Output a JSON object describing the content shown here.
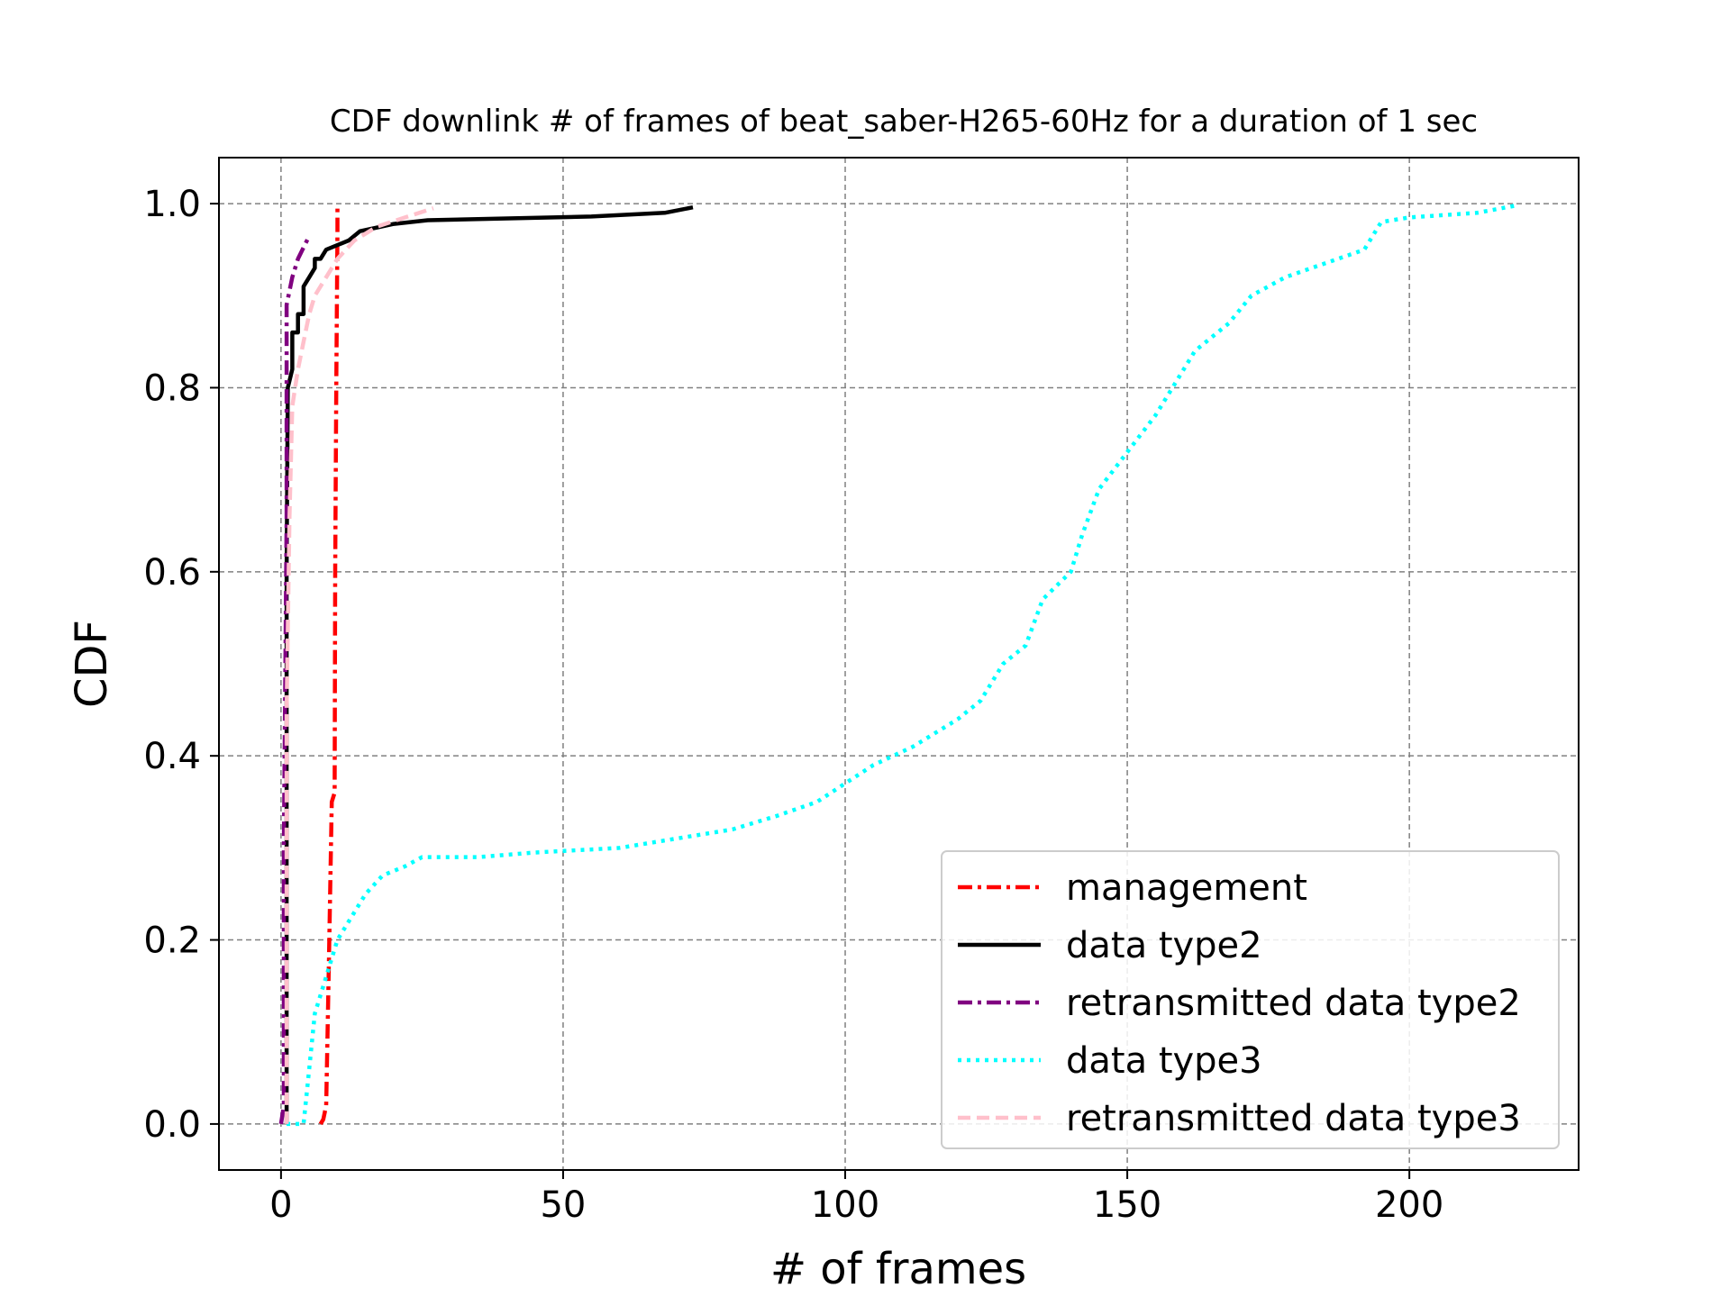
{
  "chart_data": {
    "type": "line",
    "title": "CDF downlink # of frames of beat_saber-H265-60Hz for a duration of 1 sec",
    "xlabel": "# of frames",
    "ylabel": "CDF",
    "xlim": [
      -11,
      230
    ],
    "ylim": [
      -0.05,
      1.05
    ],
    "xticks": [
      0,
      50,
      100,
      150,
      200
    ],
    "yticks": [
      0.0,
      0.2,
      0.4,
      0.6,
      0.8,
      1.0
    ],
    "xtick_labels": [
      "0",
      "50",
      "100",
      "150",
      "200"
    ],
    "ytick_labels": [
      "0.0",
      "0.2",
      "0.4",
      "0.6",
      "0.8",
      "1.0"
    ],
    "grid": true,
    "legend_position": "lower-right",
    "series": [
      {
        "name": "management",
        "color": "#ff0000",
        "style": "dashdot",
        "points": [
          [
            7,
            0.0
          ],
          [
            7.5,
            0.005
          ],
          [
            8,
            0.02
          ],
          [
            8.5,
            0.18
          ],
          [
            9,
            0.35
          ],
          [
            9.5,
            0.36
          ],
          [
            9.6,
            0.6
          ],
          [
            9.8,
            0.8
          ],
          [
            10,
            0.97
          ],
          [
            10,
            1.0
          ]
        ]
      },
      {
        "name": "data type2",
        "color": "#000000",
        "style": "solid",
        "points": [
          [
            1,
            0.0
          ],
          [
            1,
            0.2
          ],
          [
            1,
            0.4
          ],
          [
            1,
            0.6
          ],
          [
            1.2,
            0.8
          ],
          [
            2,
            0.82
          ],
          [
            2,
            0.86
          ],
          [
            3,
            0.86
          ],
          [
            3,
            0.88
          ],
          [
            4,
            0.88
          ],
          [
            4,
            0.91
          ],
          [
            5,
            0.92
          ],
          [
            6,
            0.93
          ],
          [
            6,
            0.94
          ],
          [
            7,
            0.94
          ],
          [
            8,
            0.95
          ],
          [
            10,
            0.955
          ],
          [
            12,
            0.96
          ],
          [
            14,
            0.97
          ],
          [
            20,
            0.978
          ],
          [
            26,
            0.982
          ],
          [
            55,
            0.986
          ],
          [
            68,
            0.99
          ],
          [
            73,
            0.996
          ]
        ]
      },
      {
        "name": "retransmitted data type2",
        "color": "#800080",
        "style": "dashdot",
        "points": [
          [
            0,
            0.0
          ],
          [
            0.5,
            0.02
          ],
          [
            0.5,
            0.3
          ],
          [
            1,
            0.66
          ],
          [
            1,
            0.82
          ],
          [
            1,
            0.89
          ],
          [
            2,
            0.92
          ],
          [
            3,
            0.94
          ],
          [
            5,
            0.965
          ]
        ]
      },
      {
        "name": "data type3",
        "color": "#00ffff",
        "style": "dotted",
        "points": [
          [
            1,
            0.0
          ],
          [
            4,
            0.0
          ],
          [
            5,
            0.06
          ],
          [
            6,
            0.12
          ],
          [
            8,
            0.16
          ],
          [
            10,
            0.2
          ],
          [
            12,
            0.22
          ],
          [
            15,
            0.25
          ],
          [
            18,
            0.27
          ],
          [
            22,
            0.28
          ],
          [
            25,
            0.29
          ],
          [
            35,
            0.29
          ],
          [
            45,
            0.295
          ],
          [
            60,
            0.3
          ],
          [
            70,
            0.31
          ],
          [
            80,
            0.32
          ],
          [
            88,
            0.335
          ],
          [
            95,
            0.35
          ],
          [
            100,
            0.37
          ],
          [
            105,
            0.39
          ],
          [
            112,
            0.41
          ],
          [
            120,
            0.44
          ],
          [
            124,
            0.46
          ],
          [
            128,
            0.5
          ],
          [
            132,
            0.52
          ],
          [
            135,
            0.57
          ],
          [
            140,
            0.6
          ],
          [
            142,
            0.64
          ],
          [
            145,
            0.69
          ],
          [
            150,
            0.73
          ],
          [
            155,
            0.77
          ],
          [
            158,
            0.8
          ],
          [
            162,
            0.84
          ],
          [
            168,
            0.87
          ],
          [
            172,
            0.9
          ],
          [
            178,
            0.92
          ],
          [
            185,
            0.935
          ],
          [
            192,
            0.95
          ],
          [
            195,
            0.98
          ],
          [
            200,
            0.985
          ],
          [
            212,
            0.99
          ],
          [
            219,
            0.998
          ]
        ]
      },
      {
        "name": "retransmitted data type3",
        "color": "#ffc0cb",
        "style": "dashed",
        "points": [
          [
            1,
            0.0
          ],
          [
            1,
            0.2
          ],
          [
            1,
            0.45
          ],
          [
            1.5,
            0.66
          ],
          [
            2,
            0.78
          ],
          [
            3,
            0.82
          ],
          [
            4,
            0.85
          ],
          [
            5,
            0.88
          ],
          [
            6,
            0.9
          ],
          [
            8,
            0.92
          ],
          [
            10,
            0.94
          ],
          [
            13,
            0.96
          ],
          [
            17,
            0.975
          ],
          [
            22,
            0.985
          ],
          [
            27,
            0.995
          ]
        ]
      }
    ]
  }
}
